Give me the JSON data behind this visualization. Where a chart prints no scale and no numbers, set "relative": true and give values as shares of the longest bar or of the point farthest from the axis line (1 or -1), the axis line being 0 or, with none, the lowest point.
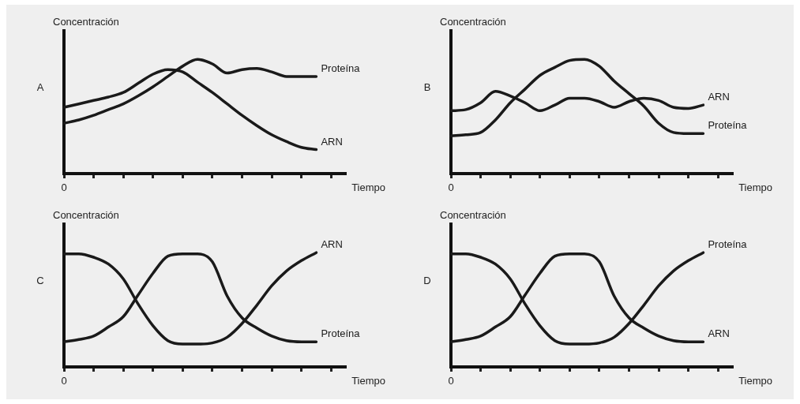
{
  "chart_data": [
    {
      "type": "line",
      "relative": true,
      "ylabel": "Concentración",
      "xlabel": "Tiempo",
      "annotations": [
        "A",
        "0"
      ],
      "categories": [
        null,
        null,
        null,
        null,
        null,
        null,
        null,
        null,
        null,
        null,
        null,
        null,
        null,
        null,
        null,
        null,
        null,
        null,
        null,
        null
      ],
      "tick_labels": false,
      "grid": false,
      "legend": false,
      "marker": "none",
      "line_style": "solid",
      "series": [
        {
          "name": "Proteína",
          "color": "#1a1a1a",
          "values": [
            0.44,
            0.47,
            0.51,
            0.56,
            0.61,
            0.68,
            0.76,
            0.85,
            0.94,
            1,
            0.96,
            0.88,
            0.91,
            0.92,
            0.89,
            0.85,
            0.85,
            0.85,
            null,
            null
          ]
        },
        {
          "name": "ARN",
          "color": "#1a1a1a",
          "values": [
            0.58,
            0.61,
            0.64,
            0.67,
            0.71,
            0.79,
            0.87,
            0.91,
            0.89,
            0.8,
            0.71,
            0.61,
            0.51,
            0.42,
            0.34,
            0.28,
            0.23,
            0.21,
            null,
            null
          ]
        }
      ]
    },
    {
      "type": "line",
      "relative": true,
      "ylabel": "Concentración",
      "xlabel": "Tiempo",
      "annotations": [
        "B",
        "0"
      ],
      "categories": [
        null,
        null,
        null,
        null,
        null,
        null,
        null,
        null,
        null,
        null,
        null,
        null,
        null,
        null,
        null,
        null,
        null,
        null,
        null,
        null
      ],
      "tick_labels": false,
      "grid": false,
      "legend": false,
      "marker": "none",
      "line_style": "solid",
      "series": [
        {
          "name": "ARN",
          "color": "#1a1a1a",
          "values": [
            0.55,
            0.56,
            0.62,
            0.72,
            0.68,
            0.62,
            0.55,
            0.6,
            0.66,
            0.66,
            0.63,
            0.58,
            0.63,
            0.66,
            0.64,
            0.58,
            0.57,
            0.6,
            null,
            null
          ]
        },
        {
          "name": "Proteína",
          "color": "#1a1a1a",
          "values": [
            0.33,
            0.34,
            0.36,
            0.47,
            0.62,
            0.74,
            0.86,
            0.93,
            0.99,
            1,
            0.94,
            0.81,
            0.7,
            0.59,
            0.44,
            0.36,
            0.35,
            0.35,
            null,
            null
          ]
        }
      ]
    },
    {
      "type": "line",
      "relative": true,
      "ylabel": "Concentración",
      "xlabel": "Tiempo",
      "annotations": [
        "C",
        "0"
      ],
      "categories": [
        null,
        null,
        null,
        null,
        null,
        null,
        null,
        null,
        null,
        null,
        null,
        null,
        null,
        null,
        null,
        null,
        null,
        null,
        null,
        null
      ],
      "tick_labels": false,
      "grid": false,
      "legend": false,
      "marker": "none",
      "line_style": "solid",
      "series": [
        {
          "name": "ARN",
          "color": "#1a1a1a",
          "values": [
            0.99,
            0.99,
            0.96,
            0.9,
            0.77,
            0.55,
            0.36,
            0.23,
            0.2,
            0.2,
            0.21,
            0.26,
            0.38,
            0.54,
            0.71,
            0.84,
            0.93,
            1,
            null,
            null
          ]
        },
        {
          "name": "Proteína",
          "color": "#1a1a1a",
          "values": [
            0.22,
            0.24,
            0.27,
            0.35,
            0.44,
            0.63,
            0.82,
            0.97,
            0.99,
            0.99,
            0.92,
            0.62,
            0.43,
            0.34,
            0.27,
            0.23,
            0.22,
            0.22,
            null,
            null
          ]
        }
      ]
    },
    {
      "type": "line",
      "relative": true,
      "ylabel": "Concentración",
      "xlabel": "Tiempo",
      "annotations": [
        "D",
        "0"
      ],
      "categories": [
        null,
        null,
        null,
        null,
        null,
        null,
        null,
        null,
        null,
        null,
        null,
        null,
        null,
        null,
        null,
        null,
        null,
        null,
        null,
        null
      ],
      "tick_labels": false,
      "grid": false,
      "legend": false,
      "marker": "none",
      "line_style": "solid",
      "series": [
        {
          "name": "Proteína",
          "color": "#1a1a1a",
          "values": [
            0.99,
            0.99,
            0.96,
            0.9,
            0.77,
            0.55,
            0.36,
            0.23,
            0.2,
            0.2,
            0.21,
            0.26,
            0.38,
            0.54,
            0.71,
            0.84,
            0.93,
            1,
            null,
            null
          ]
        },
        {
          "name": "ARN",
          "color": "#1a1a1a",
          "values": [
            0.22,
            0.24,
            0.27,
            0.35,
            0.44,
            0.63,
            0.82,
            0.97,
            0.99,
            0.99,
            0.92,
            0.62,
            0.43,
            0.34,
            0.27,
            0.23,
            0.22,
            0.22,
            null,
            null
          ]
        }
      ]
    }
  ]
}
